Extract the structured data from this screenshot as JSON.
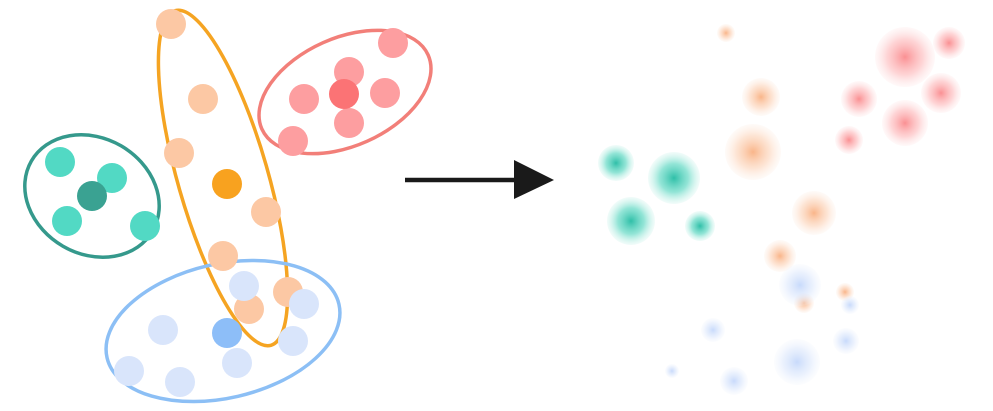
{
  "diagram": {
    "arrow_direction": "right",
    "colors": {
      "teal": "#52d9c4",
      "teal_center": "#3aa292",
      "orange": "#fcc8a4",
      "orange_center": "#f8a21f",
      "red": "#fd9ea0",
      "red_center": "#fb7375",
      "blue": "#d9e5fb",
      "blue_center": "#8dbef8",
      "arrow": "#1a1a1a"
    },
    "clusters": [
      {
        "name": "teal",
        "outline": "#35998c"
      },
      {
        "name": "orange",
        "outline": "#f5a422"
      },
      {
        "name": "red",
        "outline": "#f27f79"
      },
      {
        "name": "blue",
        "outline": "#8cbff5"
      }
    ]
  }
}
